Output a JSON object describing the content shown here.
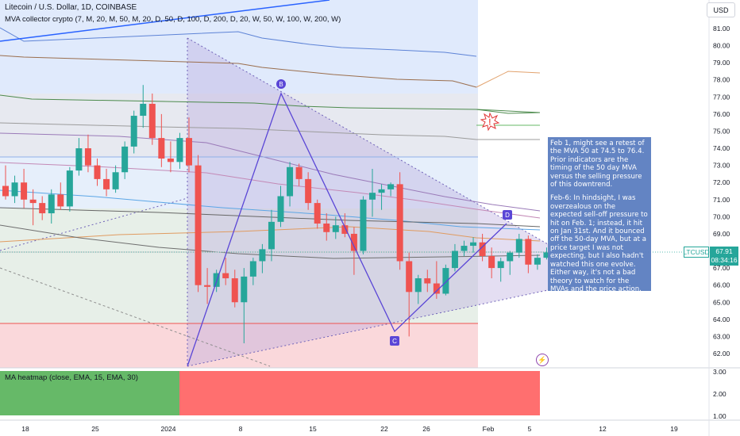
{
  "header": {
    "title": "Litecoin / U.S. Dollar, 1D, COINBASE",
    "indicator": "MVA collector crypto (7, M, 20, M, 50, M, 20, D, 50, D, 100, D, 200, D, 20, W, 50, W, 100, W, 200, W)",
    "currency_button": "USD"
  },
  "price_axis": {
    "ticks": [
      "81.00",
      "80.00",
      "79.00",
      "78.00",
      "77.00",
      "76.00",
      "75.00",
      "74.00",
      "73.00",
      "72.00",
      "71.00",
      "70.00",
      "69.00",
      "68.00",
      "67.00",
      "66.00",
      "65.00",
      "64.00",
      "63.00",
      "62.00"
    ]
  },
  "heatmap_axis": {
    "ticks": [
      "3.00",
      "2.00",
      "1.00"
    ]
  },
  "time_axis": {
    "labels": [
      "18",
      "25",
      "2024",
      "8",
      "15",
      "22",
      "26",
      "Feb",
      "5",
      "12",
      "19"
    ]
  },
  "heatmap": {
    "title": "MA heatmap (close, EMA, 15, EMA, 30)",
    "colors": {
      "green": "#66b968",
      "red": "#ff6f6f"
    }
  },
  "current_price": {
    "symbol": "LTCUSD",
    "price": "67.91",
    "countdown": "08:34:16"
  },
  "pattern_labels": {
    "b": "B",
    "c": "C",
    "d": "D"
  },
  "note": {
    "p1": "Feb 1, might see a retest of the MVA 50 at 74.5 to  76.4. Prior indicators are the timing of the 50 day MVA versus the selling pressure of this downtrend.",
    "p2": "Feb-6: In hindsight, I was overzealous on the expected sell-off pressure to hit on Feb. 1; instead, it hit on Jan 31st. And it bounced off the 50-day MVA, but at a price target I was not expecting, but I also hadn't watched this one evolve.",
    "p3": "Either way, it's not a bad theory to watch for the MVAs and the price action."
  },
  "colors": {
    "up": "#26a69a",
    "down": "#ef5350",
    "harmonic": "#5a46d6",
    "band_blue": "#dbe6fb",
    "band_red": "#f9d4d7"
  },
  "chart_data": {
    "type": "candlestick",
    "symbol": "LTCUSD",
    "timeframe": "1D",
    "yrange": [
      61.5,
      81.5
    ],
    "candles": [
      {
        "o": 71.8,
        "h": 73.0,
        "l": 71.0,
        "c": 71.2
      },
      {
        "o": 71.2,
        "h": 72.4,
        "l": 70.8,
        "c": 72.0
      },
      {
        "o": 72.0,
        "h": 72.8,
        "l": 70.5,
        "c": 71.0
      },
      {
        "o": 71.0,
        "h": 71.6,
        "l": 69.5,
        "c": 70.8
      },
      {
        "o": 70.8,
        "h": 71.2,
        "l": 69.8,
        "c": 70.2
      },
      {
        "o": 70.2,
        "h": 71.6,
        "l": 69.6,
        "c": 71.3
      },
      {
        "o": 71.3,
        "h": 72.0,
        "l": 70.4,
        "c": 70.6
      },
      {
        "o": 70.6,
        "h": 72.9,
        "l": 70.3,
        "c": 72.7
      },
      {
        "o": 72.7,
        "h": 74.6,
        "l": 72.4,
        "c": 74.0
      },
      {
        "o": 74.0,
        "h": 74.8,
        "l": 72.6,
        "c": 73.0
      },
      {
        "o": 73.0,
        "h": 73.4,
        "l": 71.8,
        "c": 72.2
      },
      {
        "o": 72.2,
        "h": 72.8,
        "l": 71.2,
        "c": 71.6
      },
      {
        "o": 71.6,
        "h": 73.0,
        "l": 71.4,
        "c": 72.6
      },
      {
        "o": 72.6,
        "h": 74.4,
        "l": 72.2,
        "c": 74.1
      },
      {
        "o": 74.1,
        "h": 76.2,
        "l": 73.7,
        "c": 75.9
      },
      {
        "o": 75.9,
        "h": 77.7,
        "l": 75.2,
        "c": 76.6
      },
      {
        "o": 76.6,
        "h": 77.2,
        "l": 74.2,
        "c": 74.6
      },
      {
        "o": 74.6,
        "h": 76.0,
        "l": 72.9,
        "c": 73.4
      },
      {
        "o": 73.4,
        "h": 74.4,
        "l": 72.6,
        "c": 73.2
      },
      {
        "o": 73.2,
        "h": 74.9,
        "l": 72.8,
        "c": 74.6
      },
      {
        "o": 74.6,
        "h": 75.8,
        "l": 72.6,
        "c": 73.0
      },
      {
        "o": 73.0,
        "h": 73.6,
        "l": 65.6,
        "c": 66.0
      },
      {
        "o": 66.0,
        "h": 67.0,
        "l": 64.9,
        "c": 65.9
      },
      {
        "o": 65.9,
        "h": 66.9,
        "l": 65.6,
        "c": 66.7
      },
      {
        "o": 66.7,
        "h": 67.6,
        "l": 66.0,
        "c": 66.4
      },
      {
        "o": 66.4,
        "h": 66.9,
        "l": 64.7,
        "c": 65.0
      },
      {
        "o": 65.0,
        "h": 67.0,
        "l": 62.6,
        "c": 66.5
      },
      {
        "o": 66.5,
        "h": 67.6,
        "l": 66.0,
        "c": 67.4
      },
      {
        "o": 67.4,
        "h": 68.4,
        "l": 66.7,
        "c": 68.1
      },
      {
        "o": 68.1,
        "h": 70.4,
        "l": 67.4,
        "c": 69.7
      },
      {
        "o": 69.7,
        "h": 71.8,
        "l": 69.4,
        "c": 71.2
      },
      {
        "o": 71.2,
        "h": 73.2,
        "l": 70.6,
        "c": 72.9
      },
      {
        "o": 72.9,
        "h": 73.1,
        "l": 71.8,
        "c": 72.2
      },
      {
        "o": 72.2,
        "h": 72.6,
        "l": 70.4,
        "c": 70.8
      },
      {
        "o": 70.8,
        "h": 71.0,
        "l": 69.3,
        "c": 69.6
      },
      {
        "o": 69.6,
        "h": 70.2,
        "l": 68.6,
        "c": 69.1
      },
      {
        "o": 69.1,
        "h": 70.0,
        "l": 68.7,
        "c": 69.5
      },
      {
        "o": 69.5,
        "h": 70.2,
        "l": 68.8,
        "c": 69.0
      },
      {
        "o": 69.0,
        "h": 69.4,
        "l": 66.6,
        "c": 68.0
      },
      {
        "o": 68.0,
        "h": 71.2,
        "l": 67.8,
        "c": 71.0
      },
      {
        "o": 71.0,
        "h": 72.8,
        "l": 70.0,
        "c": 71.4
      },
      {
        "o": 71.4,
        "h": 71.9,
        "l": 70.4,
        "c": 71.6
      },
      {
        "o": 71.6,
        "h": 72.0,
        "l": 71.2,
        "c": 71.9
      },
      {
        "o": 71.9,
        "h": 72.6,
        "l": 66.9,
        "c": 67.4
      },
      {
        "o": 67.4,
        "h": 67.9,
        "l": 63.0,
        "c": 65.6
      },
      {
        "o": 65.6,
        "h": 66.6,
        "l": 64.9,
        "c": 66.4
      },
      {
        "o": 66.4,
        "h": 66.9,
        "l": 65.6,
        "c": 66.1
      },
      {
        "o": 66.1,
        "h": 67.4,
        "l": 65.2,
        "c": 65.5
      },
      {
        "o": 65.5,
        "h": 67.2,
        "l": 65.4,
        "c": 67.0
      },
      {
        "o": 67.0,
        "h": 68.4,
        "l": 66.8,
        "c": 68.0
      },
      {
        "o": 68.0,
        "h": 68.6,
        "l": 67.7,
        "c": 68.3
      },
      {
        "o": 68.3,
        "h": 68.8,
        "l": 67.9,
        "c": 68.5
      },
      {
        "o": 68.5,
        "h": 69.0,
        "l": 67.4,
        "c": 67.7
      },
      {
        "o": 67.7,
        "h": 68.2,
        "l": 66.4,
        "c": 67.0
      },
      {
        "o": 67.0,
        "h": 67.6,
        "l": 66.2,
        "c": 67.4
      },
      {
        "o": 67.4,
        "h": 68.0,
        "l": 66.6,
        "c": 67.9
      },
      {
        "o": 67.9,
        "h": 69.0,
        "l": 67.6,
        "c": 68.7
      },
      {
        "o": 68.7,
        "h": 68.9,
        "l": 66.7,
        "c": 67.2
      },
      {
        "o": 67.2,
        "h": 67.8,
        "l": 66.9,
        "c": 67.6
      },
      {
        "o": 67.6,
        "h": 68.2,
        "l": 67.5,
        "c": 67.91
      }
    ],
    "pattern": [
      {
        "label": "B",
        "value": 77.2
      },
      {
        "label": "C",
        "value": 63.0
      },
      {
        "label": "D",
        "value": 69.6
      }
    ],
    "heatmap_bands": [
      {
        "color": "green",
        "level": 3.0
      },
      {
        "color": "red",
        "level": 3.0
      }
    ]
  }
}
